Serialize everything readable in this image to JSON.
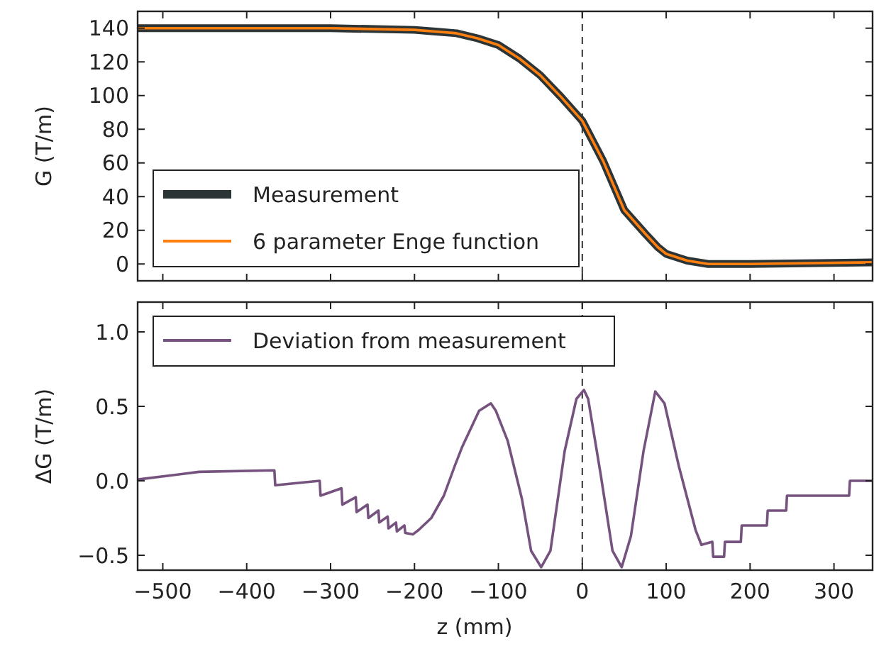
{
  "chart_data": [
    {
      "type": "line",
      "ylabel": "G (T/m)",
      "xlim": [
        -530,
        346
      ],
      "ylim": [
        -10,
        150
      ],
      "xticks": [
        -500,
        -400,
        -300,
        -200,
        -100,
        0,
        100,
        200,
        300
      ],
      "yticks": [
        0,
        20,
        40,
        60,
        80,
        100,
        120,
        140
      ],
      "tick_labels": "y",
      "legend": "bottom left",
      "line_style": "solid",
      "grid": false,
      "ref_lines": [
        {
          "axis": "x",
          "value": 0,
          "line_style": "dashed",
          "color": "#333333"
        }
      ],
      "series": [
        {
          "name": "Measurement",
          "color": "#2d3436",
          "x": [
            -530,
            -400,
            -300,
            -200,
            -175,
            -150,
            -125,
            -100,
            -75,
            -50,
            -25,
            0,
            25,
            50,
            75,
            90,
            100,
            125,
            150,
            200,
            346
          ],
          "values": [
            140,
            140,
            140,
            139,
            138,
            137,
            134,
            130,
            122,
            112,
            99,
            85,
            61,
            32,
            18,
            10,
            6,
            2,
            0,
            0,
            1
          ]
        },
        {
          "name": "6 parameter Enge function",
          "color": "#ff7f0e",
          "x": [
            -530,
            -400,
            -300,
            -200,
            -175,
            -150,
            -125,
            -100,
            -75,
            -50,
            -25,
            0,
            25,
            50,
            75,
            90,
            100,
            125,
            150,
            200,
            346
          ],
          "values": [
            140,
            140,
            140,
            139,
            138,
            137,
            134,
            130,
            122,
            112,
            99,
            85,
            61,
            32,
            18,
            10,
            6,
            2,
            0,
            0,
            1
          ]
        }
      ]
    },
    {
      "type": "line",
      "xlabel": "z (mm)",
      "ylabel": "ΔG (T/m)",
      "xlim": [
        -530,
        346
      ],
      "ylim": [
        -0.6,
        1.2
      ],
      "xticks": [
        {
          "value": -500,
          "label": "−500"
        },
        {
          "value": -400,
          "label": "−400"
        },
        {
          "value": -300,
          "label": "−300"
        },
        {
          "value": -200,
          "label": "−200"
        },
        {
          "value": -100,
          "label": "−100"
        },
        0,
        100,
        200,
        300
      ],
      "yticks": [
        {
          "value": -0.5,
          "label": "−0.5"
        },
        {
          "value": 0,
          "label": "0.0"
        },
        0.5,
        {
          "value": 1,
          "label": "1.0"
        }
      ],
      "legend": "top left",
      "line_style": "solid",
      "grid": false,
      "ref_lines": [
        {
          "axis": "x",
          "value": 0,
          "line_style": "dashed",
          "color": "#333333"
        }
      ],
      "series": [
        {
          "name": "Deviation from measurement",
          "color": "#76527e",
          "x": [
            -528,
            -457,
            -367,
            -366,
            -313,
            -312,
            -287,
            -286,
            -270,
            -269,
            -256,
            -255,
            -243,
            -242,
            -232,
            -231,
            -222,
            -221,
            -212,
            -211,
            -202,
            -195,
            -180,
            -165,
            -152,
            -143,
            -123,
            -109,
            -103,
            -89,
            -72,
            -61,
            -49,
            -38,
            -21,
            -7,
            2,
            7,
            22,
            36,
            47,
            58,
            73,
            87,
            98,
            115,
            135,
            142,
            155,
            156,
            169,
            170,
            189,
            190,
            220,
            221,
            243,
            244,
            318,
            319,
            346
          ],
          "values": [
            0.01,
            0.06,
            0.07,
            -0.03,
            0,
            -0.1,
            -0.05,
            -0.16,
            -0.11,
            -0.21,
            -0.16,
            -0.25,
            -0.2,
            -0.28,
            -0.24,
            -0.32,
            -0.28,
            -0.34,
            -0.3,
            -0.35,
            -0.36,
            -0.33,
            -0.25,
            -0.1,
            0.1,
            0.23,
            0.47,
            0.52,
            0.47,
            0.27,
            -0.12,
            -0.47,
            -0.58,
            -0.47,
            0.2,
            0.55,
            0.61,
            0.55,
            0.04,
            -0.47,
            -0.58,
            -0.37,
            0.2,
            0.6,
            0.52,
            0.1,
            -0.33,
            -0.43,
            -0.41,
            -0.51,
            -0.51,
            -0.41,
            -0.41,
            -0.3,
            -0.3,
            -0.2,
            -0.2,
            -0.1,
            -0.1,
            0,
            0
          ]
        }
      ]
    }
  ]
}
